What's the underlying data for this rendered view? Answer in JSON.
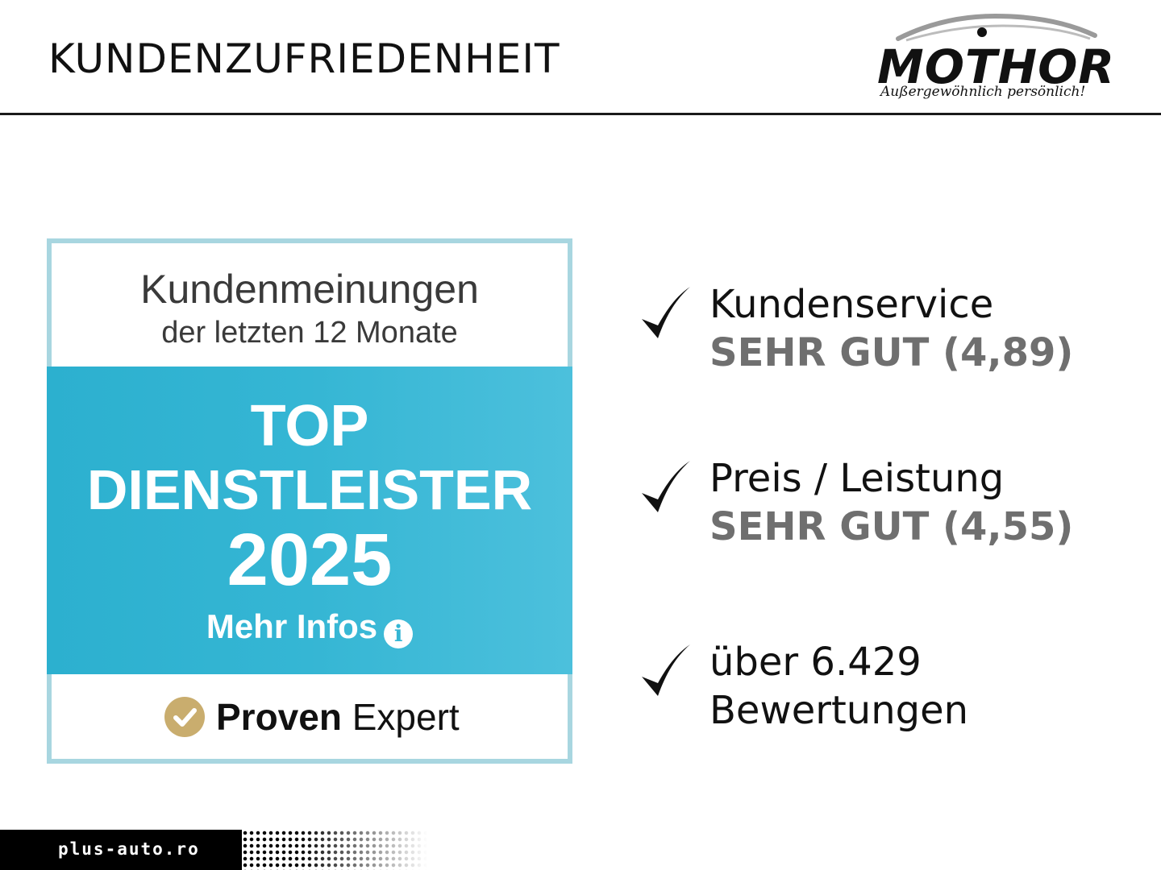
{
  "header": {
    "title": "KUNDENZUFRIEDENHEIT"
  },
  "logo": {
    "brand": "MOTHOR",
    "tagline": "Außergewöhnlich persönlich!"
  },
  "badge": {
    "heading": "Kundenmeinungen",
    "subheading": "der letzten 12 Monate",
    "line1": "TOP",
    "line2": "DIENSTLEISTER",
    "year": "2025",
    "more_label": "Mehr Infos",
    "provider_bold": "Proven",
    "provider_light": "Expert",
    "colors": {
      "band": "#35b6d4",
      "border": "#a8d6e0",
      "check": "#c9ad6e"
    }
  },
  "benefits": [
    {
      "title": "Kundenservice",
      "rating": "SEHR GUT (4,89)"
    },
    {
      "title": "Preis / Leistung",
      "rating": "SEHR GUT (4,55)"
    },
    {
      "title": "über 6.429",
      "rating": "Bewertungen"
    }
  ],
  "footer": {
    "site": "plus-auto.ro"
  }
}
